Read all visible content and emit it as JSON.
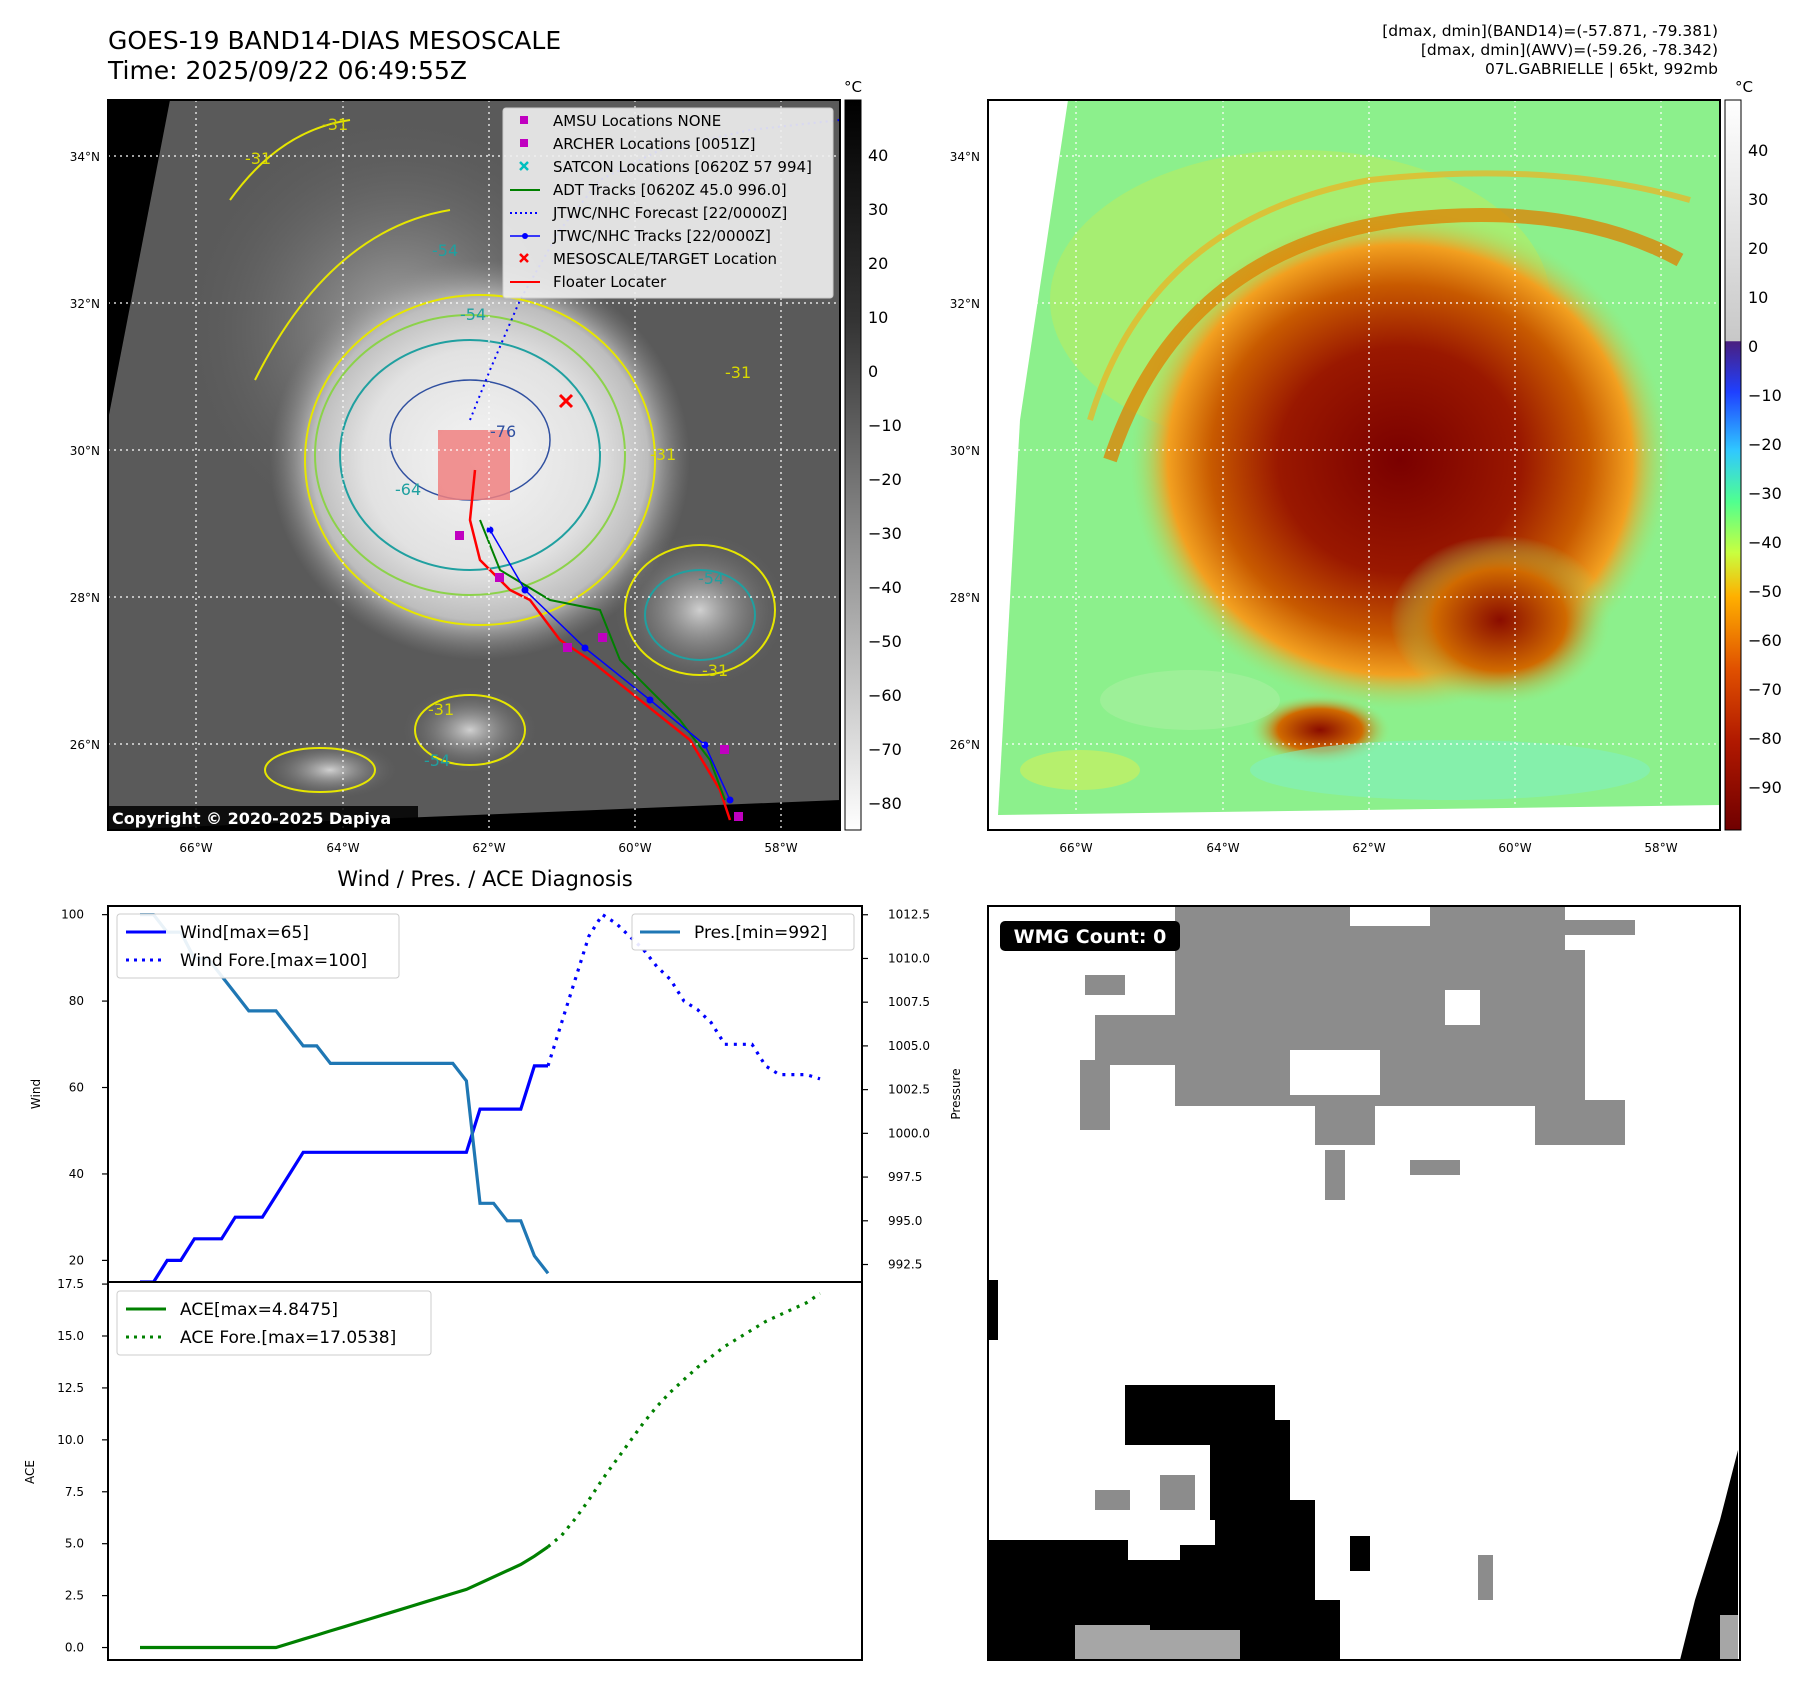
{
  "header": {
    "title_line1": "GOES-19 BAND14-DIAS MESOSCALE",
    "title_line2": "Time: 2025/09/22 06:49:55Z",
    "info_line1": "[dmax, dmin](BAND14)=(-57.871, -79.381)",
    "info_line2": "[dmax, dmin](AWV)=(-59.26, -78.342)",
    "info_line3": "07L.GABRIELLE | 65kt, 992mb"
  },
  "map_ticks": {
    "lat": [
      "34°N",
      "32°N",
      "30°N",
      "28°N",
      "26°N"
    ],
    "lon": [
      "66°W",
      "64°W",
      "62°W",
      "60°W",
      "58°W"
    ]
  },
  "ir_panel": {
    "copyright": "Copyright © 2020-2025 Dapiya",
    "contour_labels": [
      "-31",
      "-31",
      "-31",
      "-31",
      "-31",
      "-31",
      "-54",
      "-54",
      "-54",
      "-54",
      "-64",
      "-76"
    ],
    "legend": [
      {
        "label": "AMSU Locations NONE",
        "marker": "square",
        "color": "#c000c0"
      },
      {
        "label": "ARCHER Locations [0051Z]",
        "marker": "square",
        "color": "#c000c0"
      },
      {
        "label": "SATCON Locations [0620Z 57 994]",
        "marker": "x",
        "color": "#00bfbf"
      },
      {
        "label": "ADT Tracks [0620Z 45.0 996.0]",
        "marker": "line",
        "color": "#008000"
      },
      {
        "label": "JTWC/NHC Forecast [22/0000Z]",
        "marker": "dotted",
        "color": "#0000ff"
      },
      {
        "label": "JTWC/NHC Tracks [22/0000Z]",
        "marker": "line-dot",
        "color": "#0000ff"
      },
      {
        "label": "MESOSCALE/TARGET Location",
        "marker": "x",
        "color": "#ff0000"
      },
      {
        "label": "Floater Locater",
        "marker": "line",
        "color": "#ff0000"
      }
    ],
    "colorbar": {
      "unit": "°C",
      "ticks": [
        "40",
        "30",
        "20",
        "10",
        "0",
        "−10",
        "−20",
        "−30",
        "−40",
        "−50",
        "−60",
        "−70",
        "−80"
      ]
    }
  },
  "awv_panel": {
    "colorbar": {
      "unit": "°C",
      "ticks": [
        "40",
        "30",
        "20",
        "10",
        "0",
        "−10",
        "−20",
        "−30",
        "−40",
        "−50",
        "−60",
        "−70",
        "−80",
        "−90"
      ]
    }
  },
  "chart_data": [
    {
      "type": "line",
      "title": "Wind / Pres. / ACE Diagnosis",
      "ylabel": "Wind",
      "ylabel_right": "Pressure",
      "ylim": [
        15,
        102
      ],
      "ylim_right": [
        991.5,
        1013
      ],
      "yticks": [
        "100",
        "80",
        "60",
        "40",
        "20"
      ],
      "yticks_right": [
        "1012.5",
        "1010.0",
        "1007.5",
        "1005.0",
        "1002.5",
        "1000.0",
        "997.5",
        "995.0",
        "992.5"
      ],
      "x": [
        0,
        1,
        2,
        3,
        4,
        5,
        6,
        7,
        8,
        9,
        10,
        11,
        12,
        13,
        14,
        15,
        16,
        17,
        18,
        19,
        20,
        21,
        22,
        23,
        24,
        25,
        26,
        27,
        28,
        29,
        30,
        31,
        32,
        33,
        34,
        35,
        36,
        37,
        38,
        39,
        40,
        41,
        42,
        43,
        44,
        45,
        46,
        47,
        48,
        49,
        50
      ],
      "series": [
        {
          "name": "Wind[max=65]",
          "axis": "left",
          "style": "solid",
          "color": "#0000ff",
          "points": [
            [
              0,
              15
            ],
            [
              1,
              15
            ],
            [
              2,
              20
            ],
            [
              3,
              20
            ],
            [
              4,
              25
            ],
            [
              5,
              25
            ],
            [
              6,
              25
            ],
            [
              7,
              30
            ],
            [
              8,
              30
            ],
            [
              9,
              30
            ],
            [
              10,
              35
            ],
            [
              11,
              40
            ],
            [
              12,
              45
            ],
            [
              13,
              45
            ],
            [
              14,
              45
            ],
            [
              15,
              45
            ],
            [
              16,
              45
            ],
            [
              17,
              45
            ],
            [
              18,
              45
            ],
            [
              19,
              45
            ],
            [
              20,
              45
            ],
            [
              21,
              45
            ],
            [
              22,
              45
            ],
            [
              23,
              45
            ],
            [
              24,
              45
            ],
            [
              25,
              55
            ],
            [
              26,
              55
            ],
            [
              27,
              55
            ],
            [
              28,
              55
            ],
            [
              29,
              65
            ],
            [
              30,
              65
            ]
          ]
        },
        {
          "name": "Wind Fore.[max=100]",
          "axis": "left",
          "style": "dotted",
          "color": "#0000ff",
          "points": [
            [
              30,
              65
            ],
            [
              31,
              75
            ],
            [
              32,
              85
            ],
            [
              33,
              95
            ],
            [
              34,
              100
            ],
            [
              35,
              98
            ],
            [
              36,
              95
            ],
            [
              37,
              92
            ],
            [
              38,
              88
            ],
            [
              39,
              85
            ],
            [
              40,
              80
            ],
            [
              41,
              78
            ],
            [
              42,
              75
            ],
            [
              43,
              70
            ],
            [
              44,
              70
            ],
            [
              45,
              70
            ],
            [
              46,
              65
            ],
            [
              47,
              63
            ],
            [
              48,
              63
            ],
            [
              49,
              63
            ],
            [
              50,
              62
            ]
          ]
        },
        {
          "name": "Pres.[min=992]",
          "axis": "right",
          "style": "solid",
          "color": "#1f77b4",
          "points": [
            [
              0,
              1012.5
            ],
            [
              1,
              1012.5
            ],
            [
              2,
              1011.5
            ],
            [
              3,
              1011.5
            ],
            [
              4,
              1010.0
            ],
            [
              5,
              1010.0
            ],
            [
              6,
              1009.0
            ],
            [
              7,
              1008.0
            ],
            [
              8,
              1007.0
            ],
            [
              9,
              1007.0
            ],
            [
              10,
              1007.0
            ],
            [
              11,
              1006.0
            ],
            [
              12,
              1005.0
            ],
            [
              13,
              1005.0
            ],
            [
              14,
              1004.0
            ],
            [
              15,
              1004.0
            ],
            [
              16,
              1004.0
            ],
            [
              17,
              1004.0
            ],
            [
              18,
              1004.0
            ],
            [
              19,
              1004.0
            ],
            [
              20,
              1004.0
            ],
            [
              21,
              1004.0
            ],
            [
              22,
              1004.0
            ],
            [
              23,
              1004.0
            ],
            [
              24,
              1003.0
            ],
            [
              25,
              996.0
            ],
            [
              26,
              996.0
            ],
            [
              27,
              995.0
            ],
            [
              28,
              995.0
            ],
            [
              29,
              993.0
            ],
            [
              30,
              992.0
            ]
          ]
        }
      ],
      "legend_left": [
        "Wind[max=65]",
        "Wind Fore.[max=100]"
      ],
      "legend_right": [
        "Pres.[min=992]"
      ]
    },
    {
      "type": "line",
      "ylabel": "ACE",
      "ylim": [
        -0.6,
        17.6
      ],
      "yticks": [
        "17.5",
        "15.0",
        "12.5",
        "10.0",
        "7.5",
        "5.0",
        "2.5",
        "0.0"
      ],
      "series": [
        {
          "name": "ACE[max=4.8475]",
          "style": "solid",
          "color": "#008000",
          "points": [
            [
              0,
              0
            ],
            [
              1,
              0
            ],
            [
              2,
              0
            ],
            [
              3,
              0
            ],
            [
              4,
              0
            ],
            [
              5,
              0
            ],
            [
              6,
              0
            ],
            [
              7,
              0
            ],
            [
              8,
              0
            ],
            [
              9,
              0
            ],
            [
              10,
              0
            ],
            [
              11,
              0.2
            ],
            [
              12,
              0.4
            ],
            [
              13,
              0.6
            ],
            [
              14,
              0.8
            ],
            [
              15,
              1.0
            ],
            [
              16,
              1.2
            ],
            [
              17,
              1.4
            ],
            [
              18,
              1.6
            ],
            [
              19,
              1.8
            ],
            [
              20,
              2.0
            ],
            [
              21,
              2.2
            ],
            [
              22,
              2.4
            ],
            [
              23,
              2.6
            ],
            [
              24,
              2.8
            ],
            [
              25,
              3.1
            ],
            [
              26,
              3.4
            ],
            [
              27,
              3.7
            ],
            [
              28,
              4.0
            ],
            [
              29,
              4.4
            ],
            [
              30,
              4.85
            ]
          ]
        },
        {
          "name": "ACE Fore.[max=17.0538]",
          "style": "dotted",
          "color": "#008000",
          "points": [
            [
              30,
              4.85
            ],
            [
              31,
              5.4
            ],
            [
              32,
              6.2
            ],
            [
              33,
              7.1
            ],
            [
              34,
              8.1
            ],
            [
              35,
              9.0
            ],
            [
              36,
              9.9
            ],
            [
              37,
              10.8
            ],
            [
              38,
              11.6
            ],
            [
              39,
              12.3
            ],
            [
              40,
              12.9
            ],
            [
              41,
              13.5
            ],
            [
              42,
              14.0
            ],
            [
              43,
              14.5
            ],
            [
              44,
              14.9
            ],
            [
              45,
              15.3
            ],
            [
              46,
              15.7
            ],
            [
              47,
              16.0
            ],
            [
              48,
              16.3
            ],
            [
              49,
              16.6
            ],
            [
              50,
              17.05
            ]
          ]
        }
      ]
    }
  ],
  "wmg_panel": {
    "badge": "WMG Count: 0"
  }
}
